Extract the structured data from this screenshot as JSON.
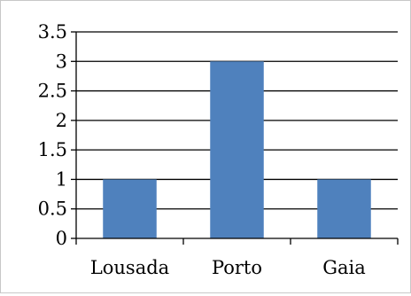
{
  "chart_data": {
    "type": "bar",
    "title": "",
    "xlabel": "",
    "ylabel": "",
    "categories": [
      "Lousada",
      "Porto",
      "Gaia"
    ],
    "values": [
      1,
      3,
      1
    ],
    "ylim": [
      0,
      3.5
    ],
    "y_ticks": [
      "0",
      "0.5",
      "1",
      "1.5",
      "2",
      "2.5",
      "3",
      "3.5"
    ],
    "grid": true,
    "legend": "none",
    "colors": {
      "bar": "#4f81bd",
      "grid": "#000000",
      "axis": "#000000"
    }
  }
}
